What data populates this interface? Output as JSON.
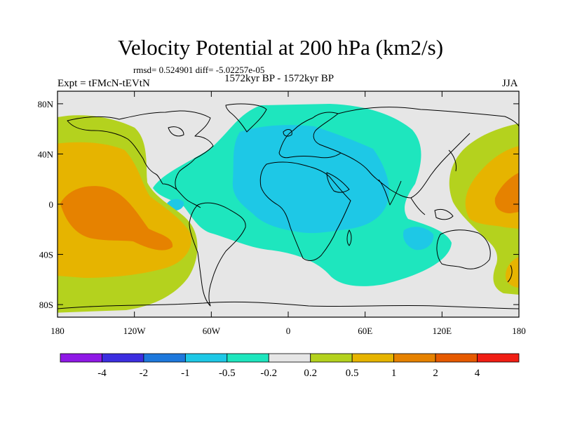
{
  "title": "Velocity Potential at 200 hPa (km2/s)",
  "stats": "rmsd= 0.524901 diff= -5.02257e-05",
  "left_label": "Expt = tFMcN-tEVtN",
  "center_label": "1572kyr BP - 1572kyr BP",
  "right_label": "JJA",
  "axes": {
    "lat_ticks": [
      "80N",
      "40N",
      "0",
      "40S",
      "80S"
    ],
    "lon_ticks": [
      "180",
      "120W",
      "60W",
      "0",
      "60E",
      "120E",
      "180"
    ]
  },
  "colorbar": {
    "colors": [
      "#8f19e6",
      "#3c2ee0",
      "#1e78dc",
      "#1ec8e6",
      "#1ee6be",
      "#e6e6e6",
      "#b4d21e",
      "#e6b400",
      "#e68200",
      "#e65a00",
      "#f01e14"
    ],
    "labels": [
      "-4",
      "-2",
      "-1",
      "-0.5",
      "-0.2",
      "0.2",
      "0.5",
      "1",
      "2",
      "4"
    ]
  },
  "map_colors": {
    "background": "#e6e6e6",
    "cyan": "#1ee6be",
    "blue": "#1ec8e6",
    "green": "#b4d21e",
    "orange": "#e6b400",
    "dark_orange": "#e68200"
  }
}
